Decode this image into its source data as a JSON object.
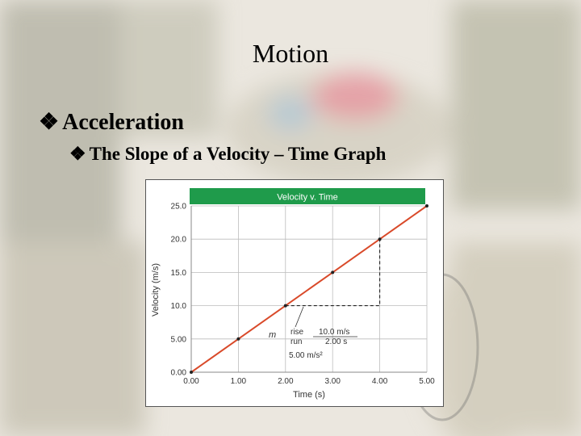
{
  "slide": {
    "title": "Motion",
    "bullet_level1": "Acceleration",
    "bullet_level2": "The Slope of a Velocity – Time Graph",
    "bullet_icon": "diamond-bullet-icon"
  },
  "chart_data": {
    "type": "line",
    "title": "Velocity v. Time",
    "xlabel": "Time (s)",
    "ylabel": "Velocity (m/s)",
    "xlim": [
      0,
      5
    ],
    "ylim": [
      0,
      25
    ],
    "x_ticks": [
      "0.00",
      "1.00",
      "2.00",
      "3.00",
      "4.00",
      "5.00"
    ],
    "y_ticks": [
      "0.00",
      "5.00",
      "10.0",
      "15.0",
      "20.0",
      "25.0"
    ],
    "grid": true,
    "series": [
      {
        "x": [
          0,
          1,
          2,
          3,
          4,
          5
        ],
        "y": [
          0,
          5,
          10,
          15,
          20,
          25
        ],
        "color": "#d94a2a"
      }
    ],
    "annotation": {
      "m": "m",
      "rise": "rise",
      "run": "run",
      "rise_value": "10.0 m/s",
      "run_value": "2.00 s",
      "result": "5.00 m/s²",
      "from": [
        2,
        10
      ],
      "to": [
        4,
        20
      ]
    },
    "header_color": "#1f9b4b"
  }
}
